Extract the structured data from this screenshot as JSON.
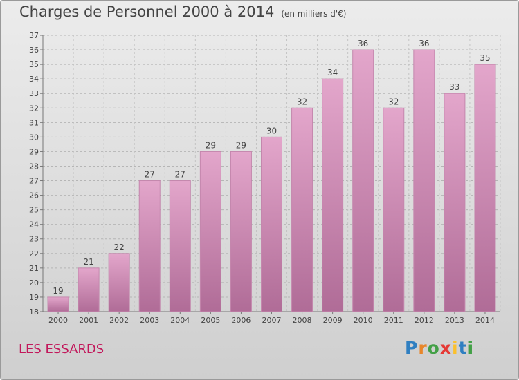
{
  "title": "Charges de Personnel 2000 à 2014",
  "subtitle": "(en milliers d'€)",
  "place": "LES ESSARDS",
  "logo": {
    "p": "P",
    "r": "r",
    "o": "o",
    "x": "x",
    "i1": "i",
    "t": "t",
    "i2": "i"
  },
  "colors": {
    "bar": "#d98bbb",
    "bar_dark": "#b86b98",
    "text": "#444444",
    "place": "#c2185b"
  },
  "chart_data": {
    "type": "bar",
    "categories": [
      "2000",
      "2001",
      "2002",
      "2003",
      "2004",
      "2005",
      "2006",
      "2007",
      "2008",
      "2009",
      "2010",
      "2011",
      "2012",
      "2013",
      "2014"
    ],
    "values": [
      19,
      21,
      22,
      27,
      27,
      29,
      29,
      30,
      32,
      34,
      36,
      32,
      36,
      33,
      35
    ],
    "ylim": [
      18,
      37
    ],
    "yticks": [
      18,
      19,
      20,
      21,
      22,
      23,
      24,
      25,
      26,
      27,
      28,
      29,
      30,
      31,
      32,
      33,
      34,
      35,
      36,
      37
    ],
    "grid": true
  }
}
